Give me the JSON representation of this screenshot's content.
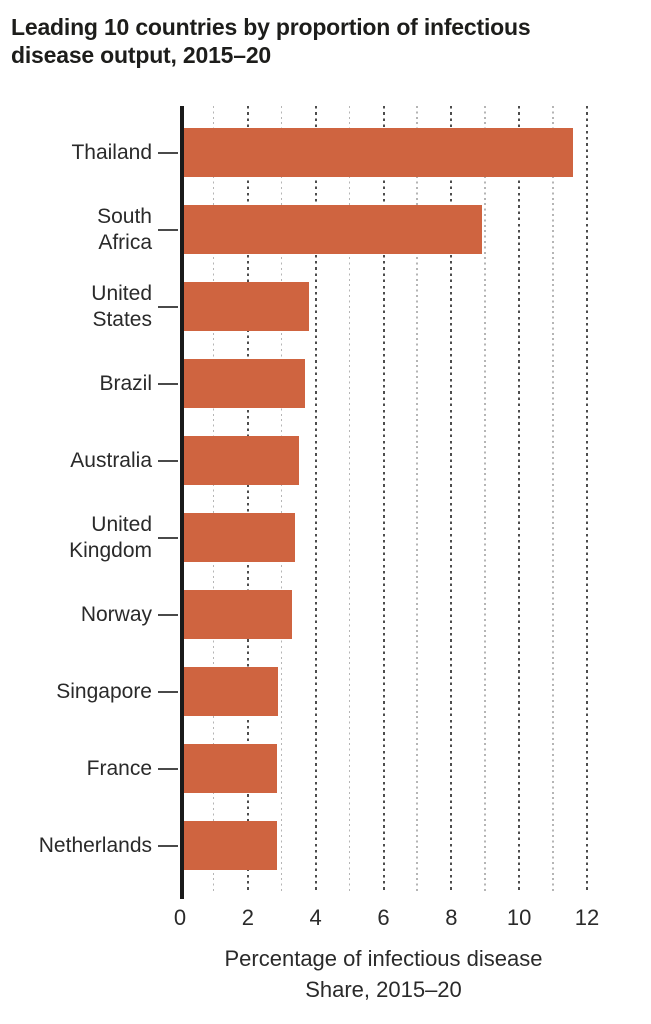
{
  "title": "Leading 10 countries by proportion of infectious disease output, 2015–20",
  "chart_data": {
    "type": "bar",
    "orientation": "horizontal",
    "title": "Leading 10 countries by proportion of infectious disease output, 2015–20",
    "categories": [
      "Thailand",
      "South\nAfrica",
      "United\nStates",
      "Brazil",
      "Australia",
      "United\nKingdom",
      "Norway",
      "Singapore",
      "France",
      "Netherlands"
    ],
    "values": [
      11.6,
      8.9,
      3.8,
      3.7,
      3.5,
      3.4,
      3.3,
      2.9,
      2.85,
      2.85
    ],
    "xlabel_line1": "Percentage of infectious disease",
    "xlabel_line2": "Share, 2015–20",
    "xlim": [
      0,
      12
    ],
    "xticks": [
      0,
      2,
      4,
      6,
      8,
      10,
      12
    ],
    "gridlines_minor": [
      1,
      3,
      5,
      7,
      9,
      11
    ],
    "gridlines_major": [
      2,
      4,
      6,
      8,
      10,
      12
    ],
    "grid": "on",
    "legend": "none",
    "colors": {
      "bar": "#cf6440",
      "grid_major": "#4d4d4d",
      "grid_minor": "#b5b5b5",
      "axis": "#1a1a1a",
      "text": "#2a2a2a",
      "title": "#1d1d1b"
    }
  }
}
